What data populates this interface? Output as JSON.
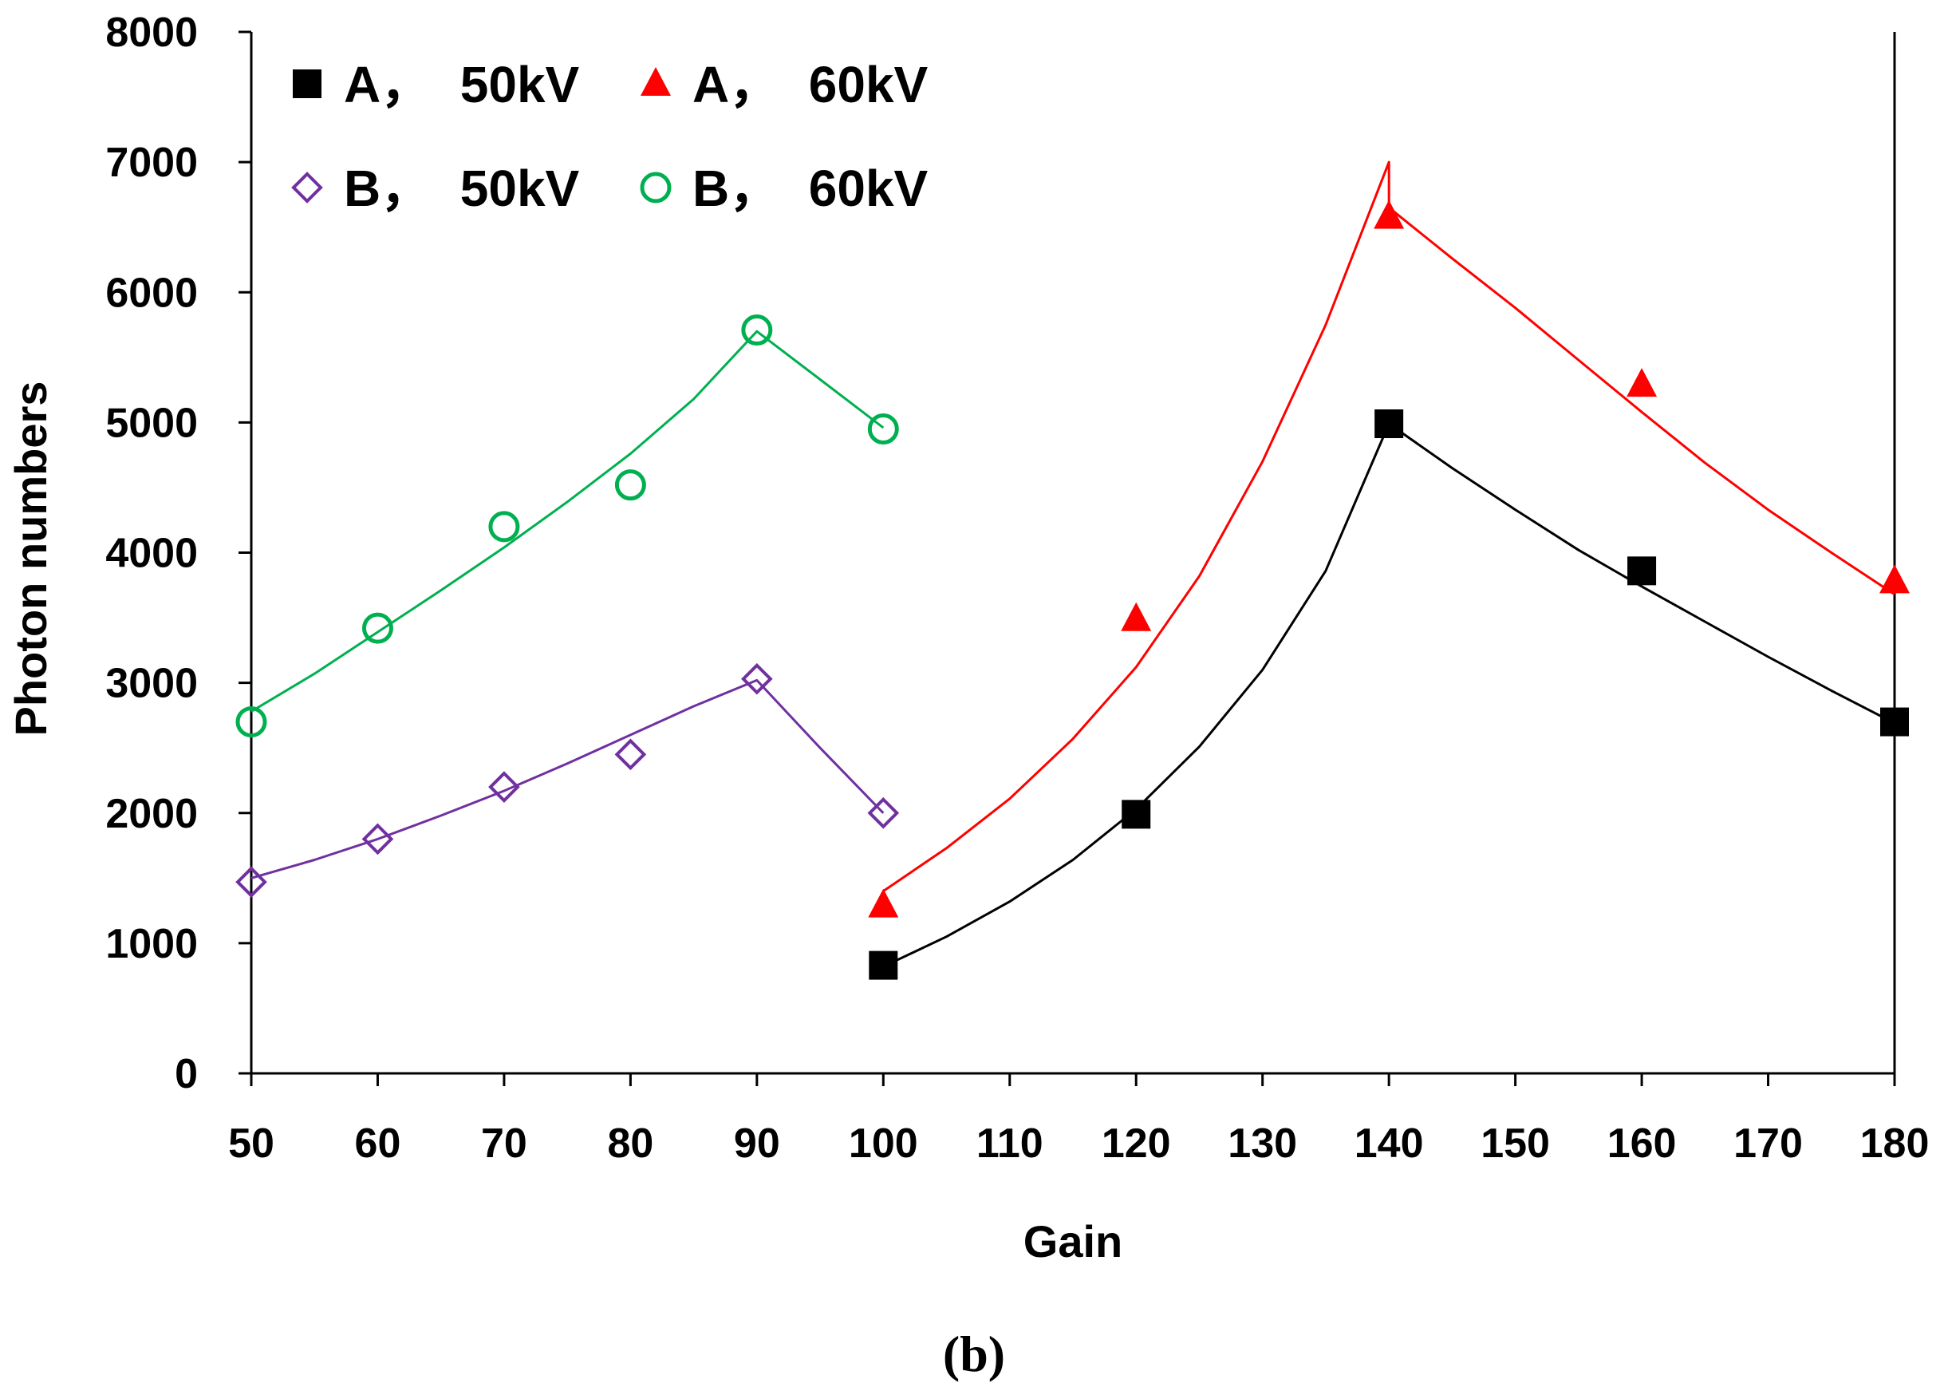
{
  "chart_data": {
    "type": "scatter",
    "xlabel": "Gain",
    "ylabel": "Photon numbers",
    "caption": "(b)",
    "xlim": [
      50,
      180
    ],
    "ylim": [
      0,
      8000
    ],
    "x_ticks": [
      "50",
      "60",
      "70",
      "80",
      "90",
      "100",
      "110",
      "120",
      "130",
      "140",
      "150",
      "160",
      "170",
      "180"
    ],
    "y_ticks": [
      "0",
      "1000",
      "2000",
      "3000",
      "4000",
      "5000",
      "6000",
      "7000",
      "8000"
    ],
    "legend_position": "top-left",
    "series": [
      {
        "name": "A，  50kV",
        "marker": "filled-square",
        "color": "#000000",
        "x": [
          100,
          120,
          140,
          160,
          180
        ],
        "y": [
          830,
          1990,
          4990,
          3860,
          2700
        ],
        "fit": [
          [
            100,
            820
          ],
          [
            105,
            1050
          ],
          [
            110,
            1320
          ],
          [
            115,
            1640
          ],
          [
            120,
            2030
          ],
          [
            125,
            2510
          ],
          [
            130,
            3100
          ],
          [
            135,
            3860
          ],
          [
            140,
            4990
          ],
          [
            145,
            4650
          ],
          [
            150,
            4330
          ],
          [
            155,
            4020
          ],
          [
            160,
            3740
          ],
          [
            165,
            3470
          ],
          [
            170,
            3200
          ],
          [
            175,
            2940
          ],
          [
            180,
            2690
          ]
        ]
      },
      {
        "name": "A，  60kV",
        "marker": "filled-triangle",
        "color": "#ff0000",
        "x": [
          100,
          120,
          140,
          160,
          180
        ],
        "y": [
          1290,
          3490,
          6580,
          5290,
          3780
        ],
        "fit": [
          [
            100,
            1400
          ],
          [
            105,
            1730
          ],
          [
            110,
            2110
          ],
          [
            115,
            2570
          ],
          [
            120,
            3120
          ],
          [
            125,
            3820
          ],
          [
            130,
            4700
          ],
          [
            135,
            5750
          ],
          [
            140,
            7000
          ],
          [
            140,
            6650
          ],
          [
            145,
            6260
          ],
          [
            150,
            5880
          ],
          [
            155,
            5480
          ],
          [
            160,
            5080
          ],
          [
            165,
            4690
          ],
          [
            170,
            4330
          ],
          [
            175,
            4000
          ],
          [
            180,
            3680
          ]
        ]
      },
      {
        "name": "B，  50kV",
        "marker": "open-diamond",
        "color": "#7030a0",
        "x": [
          50,
          60,
          70,
          80,
          90,
          100
        ],
        "y": [
          1470,
          1800,
          2200,
          2450,
          3030,
          2000
        ],
        "fit": [
          [
            50,
            1500
          ],
          [
            55,
            1640
          ],
          [
            60,
            1800
          ],
          [
            65,
            1980
          ],
          [
            70,
            2170
          ],
          [
            75,
            2380
          ],
          [
            80,
            2600
          ],
          [
            85,
            2820
          ],
          [
            90,
            3020
          ],
          [
            95,
            2500
          ],
          [
            100,
            2000
          ]
        ]
      },
      {
        "name": "B，  60kV",
        "marker": "open-circle",
        "color": "#00b050",
        "x": [
          50,
          60,
          70,
          80,
          90,
          100
        ],
        "y": [
          2700,
          3420,
          4200,
          4520,
          5710,
          4950
        ],
        "fit": [
          [
            50,
            2780
          ],
          [
            55,
            3070
          ],
          [
            60,
            3390
          ],
          [
            65,
            3710
          ],
          [
            70,
            4040
          ],
          [
            75,
            4390
          ],
          [
            80,
            4760
          ],
          [
            85,
            5180
          ],
          [
            90,
            5700
          ],
          [
            95,
            5330
          ],
          [
            100,
            4960
          ]
        ]
      }
    ]
  }
}
